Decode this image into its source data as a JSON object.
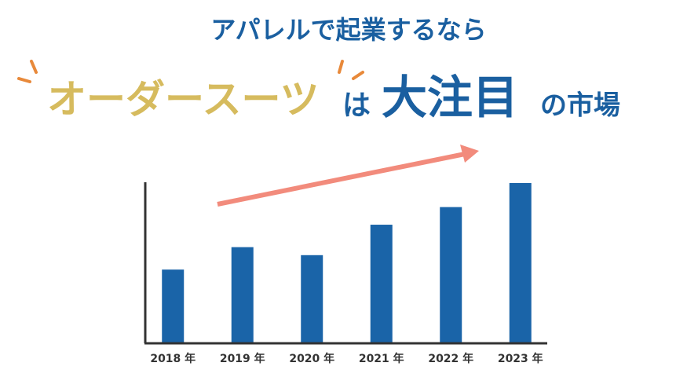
{
  "chart_data": {
    "type": "bar",
    "title": "アパレルで起業するなら",
    "subtitle_parts": [
      "オーダースーツ",
      "は",
      "大注目",
      "の市場"
    ],
    "categories": [
      "2018 年",
      "2019 年",
      "2020 年",
      "2021 年",
      "2022 年",
      "2023 年"
    ],
    "values": [
      46,
      60,
      55,
      74,
      85,
      100
    ],
    "color": "#1a64a8",
    "ylim": [
      0,
      100
    ]
  }
}
